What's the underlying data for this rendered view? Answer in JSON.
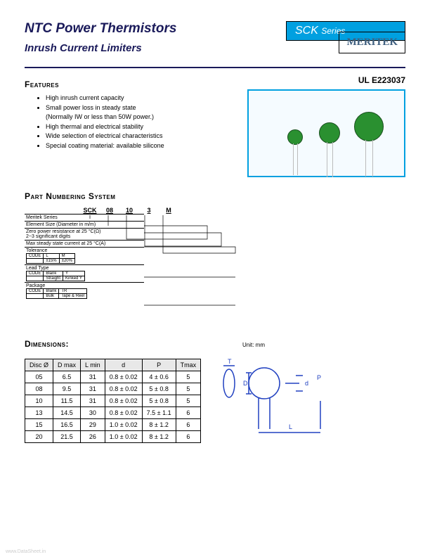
{
  "header": {
    "title": "NTC Power Thermistors",
    "subtitle": "Inrush Current Limiters",
    "series_prefix": "SCK",
    "series_suffix": "Series",
    "brand": "MERITEK"
  },
  "features": {
    "heading": "Features",
    "items": [
      "High inrush current capacity",
      "Small power loss in steady state",
      "(Normally IW or less than 50W power.)",
      "High thermal and electrical stability",
      "Wide selection of electrical characteristics",
      "Special coating material: available silicone"
    ],
    "ul_label": "UL E223037"
  },
  "part_numbering": {
    "heading": "Part Numbering System",
    "codes": [
      "SCK",
      "08",
      "10",
      "3",
      "M"
    ],
    "rows": [
      "Meritek Series",
      "Element Size   (Diameter in m/m)",
      "Zero power resistance at 25 °C(Ω)\n2~3 significant digits",
      "Max steady state current at 25 °C(A)",
      "Tolerance",
      "Lead Type",
      "Package"
    ],
    "tolerance": {
      "h": [
        "CODE",
        "L",
        "M"
      ],
      "r": [
        "",
        "±15%",
        "±20%"
      ]
    },
    "lead": {
      "h": [
        "CODE",
        "Blank",
        "Y"
      ],
      "r": [
        "",
        "Straight",
        "Kinked Y"
      ]
    },
    "package": {
      "h": [
        "CODE",
        "Blank",
        "TR"
      ],
      "r": [
        "",
        "Bulk",
        "Tape & Reel"
      ]
    }
  },
  "dimensions": {
    "heading": "Dimensions:",
    "unit": "Unit: mm",
    "columns": [
      "Disc Ø",
      "D max",
      "L min",
      "d",
      "P",
      "Tmax"
    ],
    "rows": [
      [
        "05",
        "6.5",
        "31",
        "0.8 ± 0.02",
        "4 ± 0.6",
        "5"
      ],
      [
        "08",
        "9.5",
        "31",
        "0.8 ± 0.02",
        "5 ± 0.8",
        "5"
      ],
      [
        "10",
        "11.5",
        "31",
        "0.8 ± 0.02",
        "5 ± 0.8",
        "5"
      ],
      [
        "13",
        "14.5",
        "30",
        "0.8 ± 0.02",
        "7.5 ± 1.1",
        "6"
      ],
      [
        "15",
        "16.5",
        "29",
        "1.0 ± 0.02",
        "8 ± 1.2",
        "6"
      ],
      [
        "20",
        "21.5",
        "26",
        "1.0 ± 0.02",
        "8 ± 1.2",
        "6"
      ]
    ],
    "labels": {
      "D": "D",
      "T": "T",
      "d": "d",
      "P": "P",
      "L": "L"
    }
  },
  "colors": {
    "accent": "#00a0e0",
    "title": "#1a1a5a",
    "brand": "#406080",
    "thermistor": "#2a9030",
    "diagram": "#2040c0"
  },
  "watermark": "www.DataSheet.in"
}
